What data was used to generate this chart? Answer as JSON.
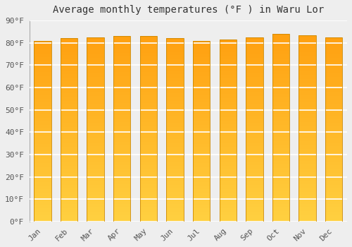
{
  "title": "Average monthly temperatures (°F ) in Waru Lor",
  "months": [
    "Jan",
    "Feb",
    "Mar",
    "Apr",
    "May",
    "Jun",
    "Jul",
    "Aug",
    "Sep",
    "Oct",
    "Nov",
    "Dec"
  ],
  "values": [
    81,
    82,
    82.5,
    83,
    83,
    82,
    81,
    81.5,
    82.5,
    84,
    83.5,
    82.5
  ],
  "ylim": [
    0,
    90
  ],
  "bar_color_bottom": "#FFD040",
  "bar_color_top": "#FFA010",
  "bar_edge_color": "#CC8800",
  "background_color": "#eeeeee",
  "grid_color": "#ffffff",
  "title_fontsize": 10,
  "tick_fontsize": 8,
  "font_family": "monospace",
  "bar_width": 0.65
}
